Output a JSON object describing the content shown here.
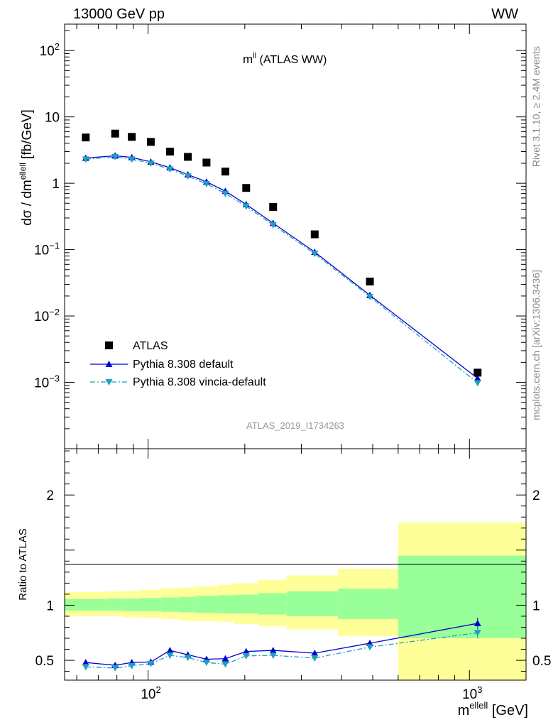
{
  "header": {
    "left": "13000 GeV pp",
    "right": "WW"
  },
  "side_labels": {
    "rivet": "Rivet 3.1.10, ≥ 2.4M events",
    "mcplots": "mcplots.cern.ch [arXiv:1306.3436]"
  },
  "top_plot": {
    "title_main": "m",
    "title_sup": "ll",
    "title_rest": " (ATLAS WW)",
    "ylabel_main": "dσ / dm",
    "ylabel_sup": "ellell",
    "ylabel_unit": " [fb/GeV]",
    "analysis_id": "ATLAS_2019_I1734263"
  },
  "bottom_plot": {
    "ylabel": "Ratio to ATLAS",
    "xlabel_main": "m",
    "xlabel_sup": "ellell",
    "xlabel_unit": " [GeV]"
  },
  "legend": {
    "atlas": "ATLAS",
    "pythia_default": "Pythia 8.308 default",
    "pythia_vincia": "Pythia 8.308 vincia-default"
  },
  "colors": {
    "atlas": "#000000",
    "pythia_default": "#0000cc",
    "pythia_vincia": "#1f9fc0",
    "band_inner": "#99ff99",
    "band_outer": "#ffff99",
    "side_text": "#888888"
  },
  "chart_data": [
    {
      "type": "scatter",
      "scale": "log-log",
      "xlim": [
        55,
        1500
      ],
      "ylim": [
        0.0001,
        250
      ],
      "x_ticks": [
        "10^2",
        "10^3"
      ],
      "y_ticks": [
        "10^-3",
        "10^-2",
        "10^-1",
        "1",
        "10",
        "10^2"
      ],
      "x": [
        64,
        79,
        89,
        102,
        117,
        133,
        152,
        174,
        202,
        245,
        330,
        490,
        1060
      ],
      "series": [
        {
          "name": "ATLAS",
          "values": [
            4.9,
            5.6,
            5.0,
            4.2,
            3.0,
            2.5,
            2.05,
            1.5,
            0.85,
            0.44,
            0.17,
            0.033,
            0.0014
          ]
        },
        {
          "name": "Pythia 8.308 default",
          "values": [
            2.4,
            2.6,
            2.45,
            2.1,
            1.72,
            1.35,
            1.05,
            0.76,
            0.48,
            0.25,
            0.092,
            0.0205,
            0.00115
          ]
        },
        {
          "name": "Pythia 8.308 vincia-default",
          "values": [
            2.3,
            2.5,
            2.3,
            2.0,
            1.63,
            1.28,
            0.98,
            0.7,
            0.45,
            0.235,
            0.087,
            0.0195,
            0.00098
          ]
        }
      ]
    },
    {
      "type": "line",
      "scale": "log-x",
      "xlim": [
        55,
        1500
      ],
      "ylim": [
        0.32,
        2.42
      ],
      "y_ticks": [
        "0.5",
        "1",
        "2"
      ],
      "ylabel": "Ratio to ATLAS",
      "x": [
        64,
        79,
        89,
        102,
        117,
        133,
        152,
        174,
        202,
        245,
        330,
        490,
        1060
      ],
      "series": [
        {
          "name": "Pythia 8.308 default",
          "values": [
            0.48,
            0.455,
            0.48,
            0.485,
            0.59,
            0.55,
            0.51,
            0.515,
            0.58,
            0.59,
            0.565,
            0.655,
            0.835
          ]
        },
        {
          "name": "Pythia 8.308 vincia-default",
          "values": [
            0.44,
            0.43,
            0.45,
            0.47,
            0.545,
            0.525,
            0.48,
            0.465,
            0.54,
            0.545,
            0.52,
            0.62,
            0.75
          ]
        }
      ],
      "uncertainty_bands": {
        "edges": [
          55,
          74,
          84,
          95,
          110,
          125,
          140,
          165,
          185,
          220,
          270,
          390,
          600,
          1500
        ],
        "inner_lo": [
          0.95,
          0.95,
          0.945,
          0.945,
          0.94,
          0.935,
          0.93,
          0.925,
          0.925,
          0.915,
          0.9,
          0.875,
          0.7
        ],
        "inner_hi": [
          1.055,
          1.06,
          1.06,
          1.065,
          1.07,
          1.075,
          1.085,
          1.09,
          1.095,
          1.11,
          1.125,
          1.15,
          1.45
        ],
        "outer_lo": [
          0.9,
          0.9,
          0.89,
          0.885,
          0.875,
          0.86,
          0.855,
          0.85,
          0.83,
          0.81,
          0.78,
          0.72,
          0.32
        ],
        "outer_hi": [
          1.12,
          1.125,
          1.13,
          1.14,
          1.155,
          1.16,
          1.17,
          1.185,
          1.2,
          1.23,
          1.27,
          1.33,
          1.75
        ]
      }
    }
  ]
}
